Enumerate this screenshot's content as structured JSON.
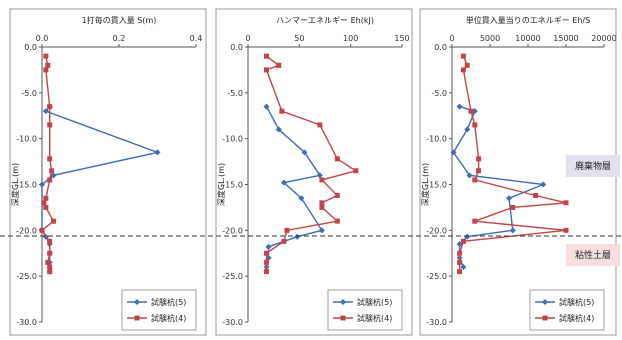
{
  "annotations": {
    "upper_layer": "廃棄物層",
    "lower_layer": "粘性土層",
    "upper_color": "#e4e1ef",
    "lower_color": "#f6dede"
  },
  "chart_data": [
    {
      "type": "line",
      "title": "1打毎の貫入量 S(m)",
      "ylabel": "深度GL.(m)",
      "xlim": [
        0,
        0.4
      ],
      "xticks": [
        "0.0",
        "0.2",
        "0.4"
      ],
      "ylim": [
        -30,
        0
      ],
      "yticks": [
        "0.0",
        "-5.0",
        "-10.0",
        "-15.0",
        "-20.0",
        "-25.0",
        "-30.0"
      ],
      "legend_position": "bottom-right",
      "series": [
        {
          "name": "試験杭(5)",
          "color": "#3e6db5",
          "marker": "diamond",
          "x": [
            0.02,
            0.01,
            0.3,
            0.03,
            0.0,
            0.0,
            0.01,
            0.02,
            0.02,
            0.02,
            0.02
          ],
          "y": [
            -6.5,
            -7.0,
            -11.5,
            -14.0,
            -15.0,
            -20.0,
            -20.7,
            -21.5,
            -22.5,
            -23.5,
            -24.5
          ]
        },
        {
          "name": "試験杭(4)",
          "color": "#c0454a",
          "marker": "square",
          "x": [
            0.01,
            0.015,
            0.01,
            0.02,
            0.02,
            0.02,
            0.025,
            0.02,
            0.01,
            0.005,
            0.01,
            0.03,
            0.0,
            0.02,
            0.02,
            0.015,
            0.02,
            0.02
          ],
          "y": [
            -1.0,
            -2.0,
            -2.5,
            -6.5,
            -8.5,
            -12.2,
            -13.5,
            -14.5,
            -16.5,
            -17.0,
            -17.5,
            -19.0,
            -20.0,
            -21.2,
            -22.5,
            -23.5,
            -24.0,
            -24.5
          ]
        }
      ]
    },
    {
      "type": "line",
      "title": "ハンマーエネルギー Eh(kJ)",
      "ylabel": "深度GL.(m)",
      "xlim": [
        0,
        150
      ],
      "xticks": [
        "0",
        "50",
        "100",
        "150"
      ],
      "ylim": [
        -30,
        0
      ],
      "yticks": [
        "0.0",
        "-5.0",
        "-10.0",
        "-15.0",
        "-20.0",
        "-25.0",
        "-30.0"
      ],
      "legend_position": "bottom-right",
      "series": [
        {
          "name": "試験杭(5)",
          "color": "#3e6db5",
          "marker": "diamond",
          "x": [
            18,
            30,
            55,
            70,
            35,
            52,
            72,
            48,
            20,
            20,
            18
          ],
          "y": [
            -6.5,
            -9.0,
            -11.5,
            -14.0,
            -14.8,
            -16.5,
            -20.0,
            -20.7,
            -21.8,
            -23.0,
            -24.0
          ]
        },
        {
          "name": "試験杭(4)",
          "color": "#c0454a",
          "marker": "square",
          "x": [
            18,
            30,
            18,
            33,
            70,
            87,
            105,
            72,
            87,
            72,
            72,
            87,
            38,
            35,
            18,
            18,
            18
          ],
          "y": [
            -1.0,
            -2.0,
            -2.5,
            -7.0,
            -8.5,
            -12.2,
            -13.5,
            -14.5,
            -16.2,
            -17.0,
            -17.5,
            -19.0,
            -20.0,
            -21.2,
            -22.5,
            -23.5,
            -24.5
          ]
        }
      ]
    },
    {
      "type": "line",
      "title": "単位貫入量当りのエネルギー Eh/S",
      "ylabel": "深度GL.(m)",
      "xlim": [
        0,
        20000
      ],
      "xticks": [
        "0",
        "5000",
        "10000",
        "15000",
        "20000"
      ],
      "ylim": [
        -30,
        0
      ],
      "yticks": [
        "0.0",
        "-5.0",
        "-10.0",
        "-15.0",
        "-20.0",
        "-25.0",
        "-30.0"
      ],
      "legend_position": "bottom-right",
      "series": [
        {
          "name": "試験杭(5)",
          "color": "#3e6db5",
          "marker": "diamond",
          "x": [
            1000,
            3000,
            2000,
            200,
            2300,
            12000,
            7500,
            8000,
            2000,
            1000,
            1000,
            1500
          ],
          "y": [
            -6.5,
            -7.0,
            -9.0,
            -11.5,
            -14.0,
            -15.0,
            -16.5,
            -20.0,
            -20.7,
            -21.5,
            -23.0,
            -24.0
          ]
        },
        {
          "name": "試験杭(4)",
          "color": "#c0454a",
          "marker": "square",
          "x": [
            1500,
            2000,
            1500,
            2500,
            3000,
            3500,
            3500,
            3000,
            11000,
            15000,
            8000,
            3000,
            15000,
            1500,
            1000,
            1000,
            1000
          ],
          "y": [
            -1.0,
            -2.0,
            -2.5,
            -7.0,
            -8.5,
            -12.2,
            -13.5,
            -14.5,
            -16.2,
            -17.0,
            -17.5,
            -19.0,
            -20.0,
            -21.2,
            -22.5,
            -23.5,
            -24.5
          ]
        }
      ]
    }
  ]
}
